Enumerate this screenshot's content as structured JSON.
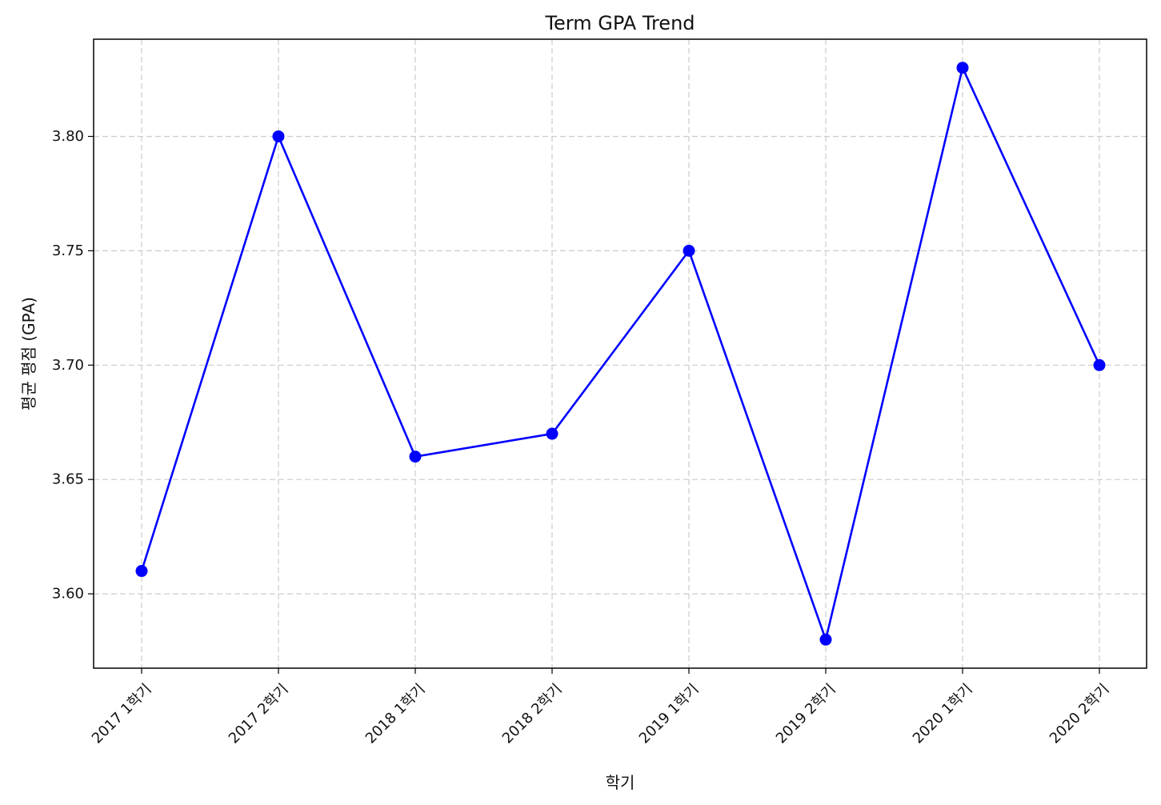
{
  "chart_data": {
    "type": "line",
    "title": "Term GPA Trend",
    "xlabel": "학기",
    "ylabel": "평균 평점 (GPA)",
    "categories": [
      "2017 1학기",
      "2017 2학기",
      "2018 1학기",
      "2018 2학기",
      "2019 1학기",
      "2019 2학기",
      "2020 1학기",
      "2020 2학기"
    ],
    "series": [
      {
        "values": [
          3.61,
          3.8,
          3.66,
          3.67,
          3.75,
          3.58,
          3.83,
          3.7
        ],
        "color": "#0000ff",
        "marker": "circle"
      }
    ],
    "yticks": [
      "3.60",
      "3.65",
      "3.70",
      "3.75",
      "3.80"
    ],
    "ylim": [
      3.5675,
      3.8425
    ],
    "grid": true,
    "xtick_rotation": 45
  }
}
